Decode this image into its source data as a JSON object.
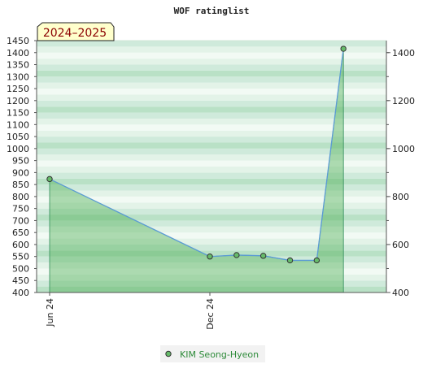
{
  "chart_data": {
    "type": "area",
    "title": "WOF ratinglist",
    "season_label": "2024–2025",
    "y_left": {
      "ylim": [
        400,
        1450
      ],
      "step": 50,
      "tick_labels": [
        "400",
        "450",
        "500",
        "550",
        "600",
        "650",
        "700",
        "750",
        "800",
        "850",
        "900",
        "950",
        "1000",
        "1050",
        "1100",
        "1150",
        "1200",
        "1250",
        "1300",
        "1350",
        "1400",
        "1450"
      ]
    },
    "y_right": {
      "tick_labels": [
        "400",
        "600",
        "800",
        "1000",
        "1200",
        "1400"
      ]
    },
    "x_axis": {
      "start": "2024-06",
      "end": "2025-06",
      "tick_labels": [
        {
          "label": "Jun 24",
          "date": "2024-06"
        },
        {
          "label": "Dec 24",
          "date": "2024-12"
        }
      ]
    },
    "series": [
      {
        "name": "KIM Seong-Hyeon",
        "points": [
          {
            "x": "2024-06",
            "y": 873
          },
          {
            "x": "2024-12",
            "y": 550
          },
          {
            "x": "2025-01",
            "y": 556
          },
          {
            "x": "2025-02",
            "y": 553
          },
          {
            "x": "2025-03",
            "y": 534
          },
          {
            "x": "2025-04",
            "y": 534
          },
          {
            "x": "2025-05",
            "y": 1416
          }
        ]
      }
    ],
    "grid": true,
    "legend": "bottom-center",
    "colors": {
      "area": "#4caf50",
      "line": "#5b9bd5",
      "marker": "#66bb6a",
      "legend_text": "#2e8b3a",
      "band_dark": "#b7e0c4",
      "band_light": "#eaf6ee"
    }
  }
}
